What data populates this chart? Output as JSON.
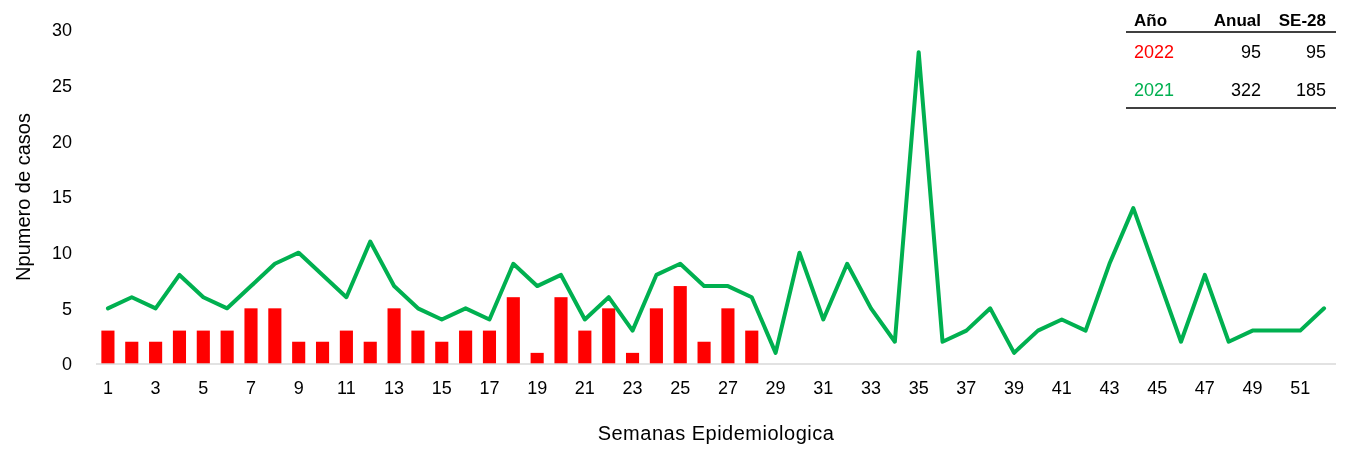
{
  "chart_data": {
    "type": "bar",
    "xlabel": "Semanas Epidemiologica",
    "ylabel": "Npumero de casos",
    "x": [
      1,
      2,
      3,
      4,
      5,
      6,
      7,
      8,
      9,
      10,
      11,
      12,
      13,
      14,
      15,
      16,
      17,
      18,
      19,
      20,
      21,
      22,
      23,
      24,
      25,
      26,
      27,
      28,
      29,
      30,
      31,
      32,
      33,
      34,
      35,
      36,
      37,
      38,
      39,
      40,
      41,
      42,
      43,
      44,
      45,
      46,
      47,
      48,
      49,
      50,
      51,
      52
    ],
    "xlim": [
      0.5,
      52.5
    ],
    "xticks": [
      1,
      3,
      5,
      7,
      9,
      11,
      13,
      15,
      17,
      19,
      21,
      23,
      25,
      27,
      29,
      31,
      33,
      35,
      37,
      39,
      41,
      43,
      45,
      47,
      49,
      51
    ],
    "series": [
      {
        "name": "2022",
        "color": "#ff0000",
        "values": [
          3,
          2,
          2,
          3,
          3,
          3,
          5,
          5,
          2,
          2,
          3,
          2,
          5,
          3,
          2,
          3,
          3,
          6,
          1,
          6,
          3,
          5,
          1,
          5,
          7,
          2,
          5,
          3,
          null,
          null,
          null,
          null,
          null,
          null,
          null,
          null,
          null,
          null,
          null,
          null,
          null,
          null,
          null,
          null,
          null,
          null,
          null,
          null,
          null,
          null,
          null,
          null
        ]
      },
      {
        "name": "2021",
        "type": "line",
        "color": "#00b050",
        "values": [
          5,
          6,
          5,
          8,
          6,
          5,
          7,
          9,
          10,
          8,
          6,
          11,
          7,
          5,
          4,
          5,
          4,
          9,
          7,
          8,
          4,
          6,
          3,
          8,
          9,
          7,
          7,
          6,
          1,
          10,
          4,
          9,
          5,
          2,
          28,
          2,
          3,
          5,
          1,
          3,
          4,
          3,
          9,
          14,
          8,
          2,
          8,
          2,
          3,
          3,
          3,
          5
        ]
      }
    ],
    "ylim": [
      0,
      30
    ],
    "yticks": [
      0,
      5,
      10,
      15,
      20,
      25,
      30
    ],
    "grid": false,
    "legend": "top right",
    "marker": "none",
    "line_style": "solid",
    "annotations": [
      "Año",
      "Anual",
      "SE-28",
      "95",
      "95",
      "322",
      "185"
    ]
  }
}
